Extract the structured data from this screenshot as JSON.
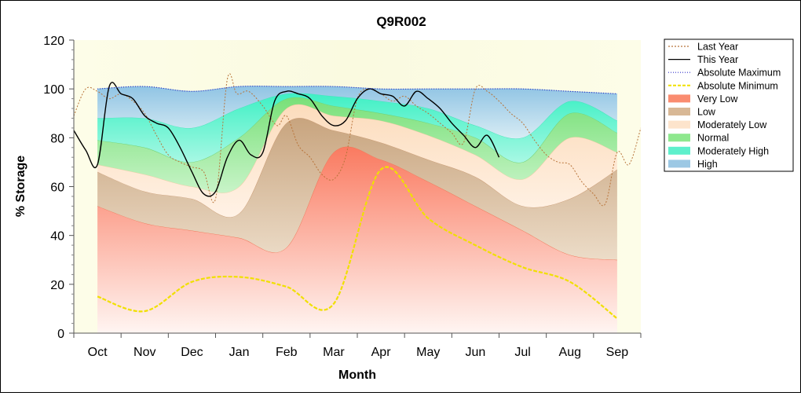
{
  "chart_data": {
    "type": "area",
    "title": "Q9R002",
    "xlabel": "Month",
    "ylabel": "% Storage",
    "ylim": [
      0,
      120
    ],
    "y_ticks": [
      0,
      20,
      40,
      60,
      80,
      100,
      120
    ],
    "categories": [
      "Oct",
      "Nov",
      "Dec",
      "Jan",
      "Feb",
      "Mar",
      "Apr",
      "May",
      "Jun",
      "Jul",
      "Aug",
      "Sep"
    ],
    "grid": false,
    "legend_position": "right",
    "x_domain": [
      -0.5,
      11.5
    ],
    "band_x": [
      0,
      1,
      2,
      3,
      4,
      5,
      6,
      7,
      8,
      9,
      10,
      11
    ],
    "bands": {
      "absolute_minimum": [
        15,
        9,
        21,
        23,
        19,
        12,
        67,
        47,
        36,
        27,
        21,
        6
      ],
      "very_low": [
        52,
        45,
        42,
        39,
        35,
        74,
        71,
        62,
        52,
        42,
        32,
        30
      ],
      "low": [
        66,
        58,
        55,
        49,
        86,
        83,
        78,
        71,
        64,
        52,
        55,
        67
      ],
      "moderately_low": [
        69,
        65,
        60,
        60,
        92,
        89,
        87,
        81,
        73,
        63,
        80,
        74
      ],
      "normal": [
        79,
        76,
        70,
        80,
        96,
        93,
        90,
        86,
        80,
        70,
        90,
        82
      ],
      "moderately_high": [
        88,
        88,
        84,
        92,
        98,
        97,
        95,
        92,
        85,
        80,
        95,
        87
      ],
      "high": [
        100,
        101,
        99,
        101,
        101,
        101,
        100,
        100,
        100,
        100,
        99,
        98
      ],
      "absolute_maximum": [
        100,
        101,
        99,
        101,
        101,
        101,
        100,
        100,
        100,
        100,
        99,
        98
      ]
    },
    "series": [
      {
        "name": "Last Year",
        "x": [
          -0.5,
          -0.25,
          0,
          0.25,
          0.5,
          0.75,
          1,
          1.25,
          1.5,
          1.75,
          2,
          2.25,
          2.5,
          2.75,
          2.95,
          3.2,
          3.5,
          3.8,
          4,
          4.25,
          4.5,
          4.75,
          5,
          5.25,
          5.5,
          5.75,
          6,
          6.25,
          6.5,
          6.75,
          7,
          7.25,
          7.5,
          7.75,
          8,
          8.25,
          8.5,
          8.75,
          9,
          9.25,
          9.5,
          9.75,
          10,
          10.25,
          10.5,
          10.75,
          11,
          11.25,
          11.5
        ],
        "y": [
          89,
          100,
          99,
          96,
          98,
          95,
          90,
          81,
          73,
          70,
          68,
          66,
          55,
          104,
          98,
          99,
          93,
          85,
          89,
          77,
          72,
          65,
          63,
          72,
          96,
          100,
          98,
          95,
          97,
          93,
          90,
          86,
          82,
          78,
          100,
          99,
          95,
          90,
          86,
          79,
          73,
          70,
          69,
          62,
          57,
          53,
          74,
          69,
          84
        ]
      },
      {
        "name": "This Year",
        "x": [
          -0.5,
          -0.25,
          0,
          0.25,
          0.5,
          0.75,
          1,
          1.25,
          1.5,
          1.75,
          2,
          2.25,
          2.5,
          2.75,
          3,
          3.25,
          3.5,
          3.75,
          4,
          4.25,
          4.5,
          4.75,
          5,
          5.25,
          5.5,
          5.75,
          6,
          6.25,
          6.5,
          6.75,
          7,
          7.25,
          7.5,
          7.75,
          8,
          8.25,
          8.5
        ],
        "y": [
          83,
          75,
          69,
          101,
          98,
          96,
          89,
          86,
          84,
          76,
          66,
          57,
          58,
          72,
          79,
          73,
          74,
          95,
          99,
          98,
          96,
          89,
          85,
          87,
          96,
          100,
          98,
          97,
          93,
          99,
          96,
          92,
          86,
          81,
          76,
          81,
          72
        ]
      },
      {
        "name": "Absolute Maximum",
        "x": [
          0,
          1,
          2,
          3,
          4,
          5,
          6,
          7,
          8,
          9,
          10,
          11
        ],
        "y": [
          100,
          101,
          99,
          101,
          101,
          101,
          100,
          100,
          100,
          100,
          99,
          98
        ]
      },
      {
        "name": "Absolute Minimum",
        "x": [
          0,
          1,
          2,
          3,
          4,
          5,
          6,
          7,
          8,
          9,
          10,
          11
        ],
        "y": [
          15,
          9,
          21,
          23,
          19,
          12,
          67,
          47,
          36,
          27,
          21,
          6
        ]
      }
    ],
    "legend": [
      {
        "label": "Last Year",
        "kind": "line",
        "color": "#b8743a",
        "dash": "2,2"
      },
      {
        "label": "This Year",
        "kind": "line",
        "color": "#000000",
        "dash": ""
      },
      {
        "label": "Absolute Maximum",
        "kind": "line",
        "color": "#3030c8",
        "dash": "1,2"
      },
      {
        "label": "Absolute Minimum",
        "kind": "line",
        "color": "#f0e000",
        "dash": "4,2"
      },
      {
        "label": "Very Low",
        "kind": "swatch",
        "color": "#fa8c70"
      },
      {
        "label": "Low",
        "kind": "swatch",
        "color": "#d8b896"
      },
      {
        "label": "Moderately Low",
        "kind": "swatch",
        "color": "#fde4cc"
      },
      {
        "label": "Normal",
        "kind": "swatch",
        "color": "#8ee88e"
      },
      {
        "label": "Moderately High",
        "kind": "swatch",
        "color": "#5ef0cc"
      },
      {
        "label": "High",
        "kind": "swatch",
        "color": "#9cc8e4"
      }
    ]
  }
}
